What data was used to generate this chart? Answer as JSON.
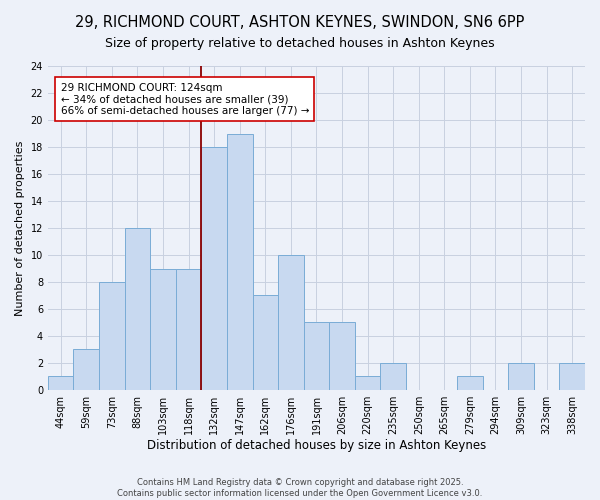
{
  "title": "29, RICHMOND COURT, ASHTON KEYNES, SWINDON, SN6 6PP",
  "subtitle": "Size of property relative to detached houses in Ashton Keynes",
  "xlabel": "Distribution of detached houses by size in Ashton Keynes",
  "ylabel": "Number of detached properties",
  "bin_labels": [
    "44sqm",
    "59sqm",
    "73sqm",
    "88sqm",
    "103sqm",
    "118sqm",
    "132sqm",
    "147sqm",
    "162sqm",
    "176sqm",
    "191sqm",
    "206sqm",
    "220sqm",
    "235sqm",
    "250sqm",
    "265sqm",
    "279sqm",
    "294sqm",
    "309sqm",
    "323sqm",
    "338sqm"
  ],
  "bar_values": [
    1,
    3,
    8,
    12,
    9,
    9,
    18,
    19,
    7,
    10,
    5,
    5,
    1,
    2,
    0,
    0,
    1,
    0,
    2,
    0,
    2
  ],
  "bar_color": "#c8d9f0",
  "bar_edge_color": "#7aacd6",
  "grid_color": "#c8d0e0",
  "background_color": "#edf1f9",
  "vline_x": 6.0,
  "vline_color": "#8b0000",
  "annotation_line1": "29 RICHMOND COURT: 124sqm",
  "annotation_line2": "← 34% of detached houses are smaller (39)",
  "annotation_line3": "66% of semi-detached houses are larger (77) →",
  "ylim": [
    0,
    24
  ],
  "yticks": [
    0,
    2,
    4,
    6,
    8,
    10,
    12,
    14,
    16,
    18,
    20,
    22,
    24
  ],
  "footer_line1": "Contains HM Land Registry data © Crown copyright and database right 2025.",
  "footer_line2": "Contains public sector information licensed under the Open Government Licence v3.0.",
  "title_fontsize": 10.5,
  "subtitle_fontsize": 9,
  "xlabel_fontsize": 8.5,
  "ylabel_fontsize": 8,
  "tick_fontsize": 7,
  "annotation_fontsize": 7.5,
  "footer_fontsize": 6
}
